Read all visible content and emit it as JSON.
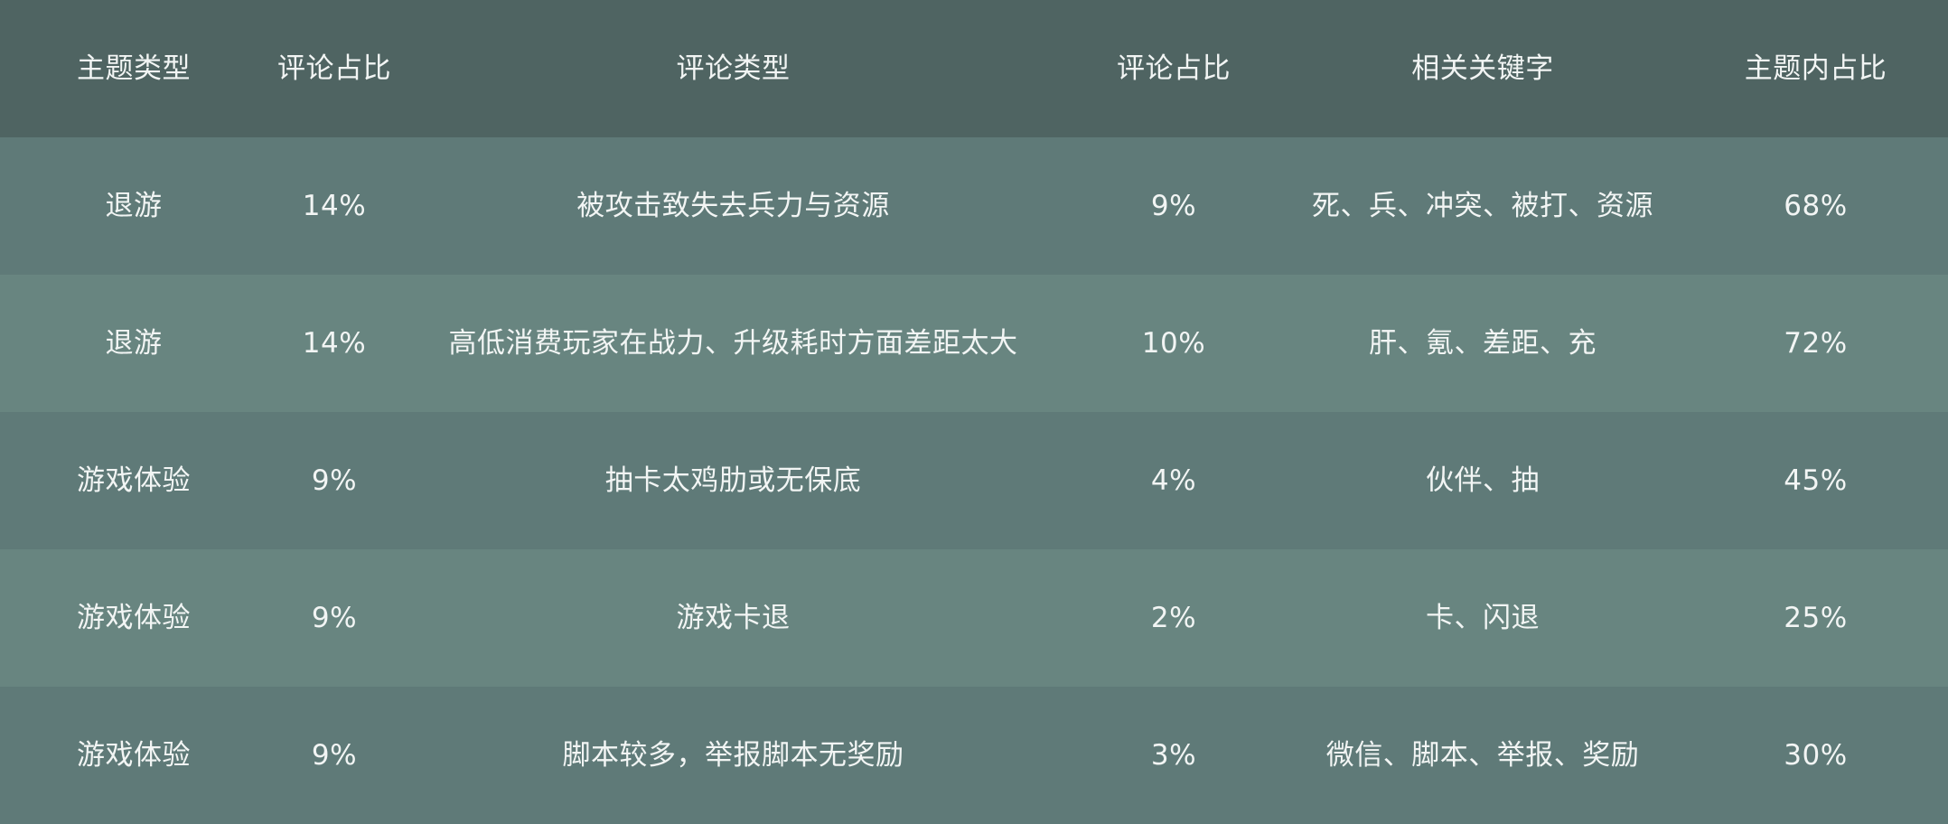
{
  "table": {
    "headers": [
      "主题类型",
      "评论占比",
      "评论类型",
      "评论占比",
      "相关关键字",
      "主题内占比"
    ],
    "rows": [
      [
        "退游",
        "14%",
        "被攻击致失去兵力与资源",
        "9%",
        "死、兵、冲突、被打、资源",
        "68%"
      ],
      [
        "退游",
        "14%",
        "高低消费玩家在战力、升级耗时方面差距太大",
        "10%",
        "肝、氪、差距、充",
        "72%"
      ],
      [
        "游戏体验",
        "9%",
        "抽卡太鸡肋或无保底",
        "4%",
        "伙伴、抽",
        "45%"
      ],
      [
        "游戏体验",
        "9%",
        "游戏卡退",
        "2%",
        "卡、闪退",
        "25%"
      ],
      [
        "游戏体验",
        "9%",
        "脚本较多，举报脚本无奖励",
        "3%",
        "微信、脚本、举报、奖励",
        "30%"
      ]
    ]
  },
  "colors": {
    "header_bg": "#4f6462",
    "row_band_a": "#5f7a78",
    "row_band_b": "#688580",
    "text": "#f2f5f4"
  }
}
